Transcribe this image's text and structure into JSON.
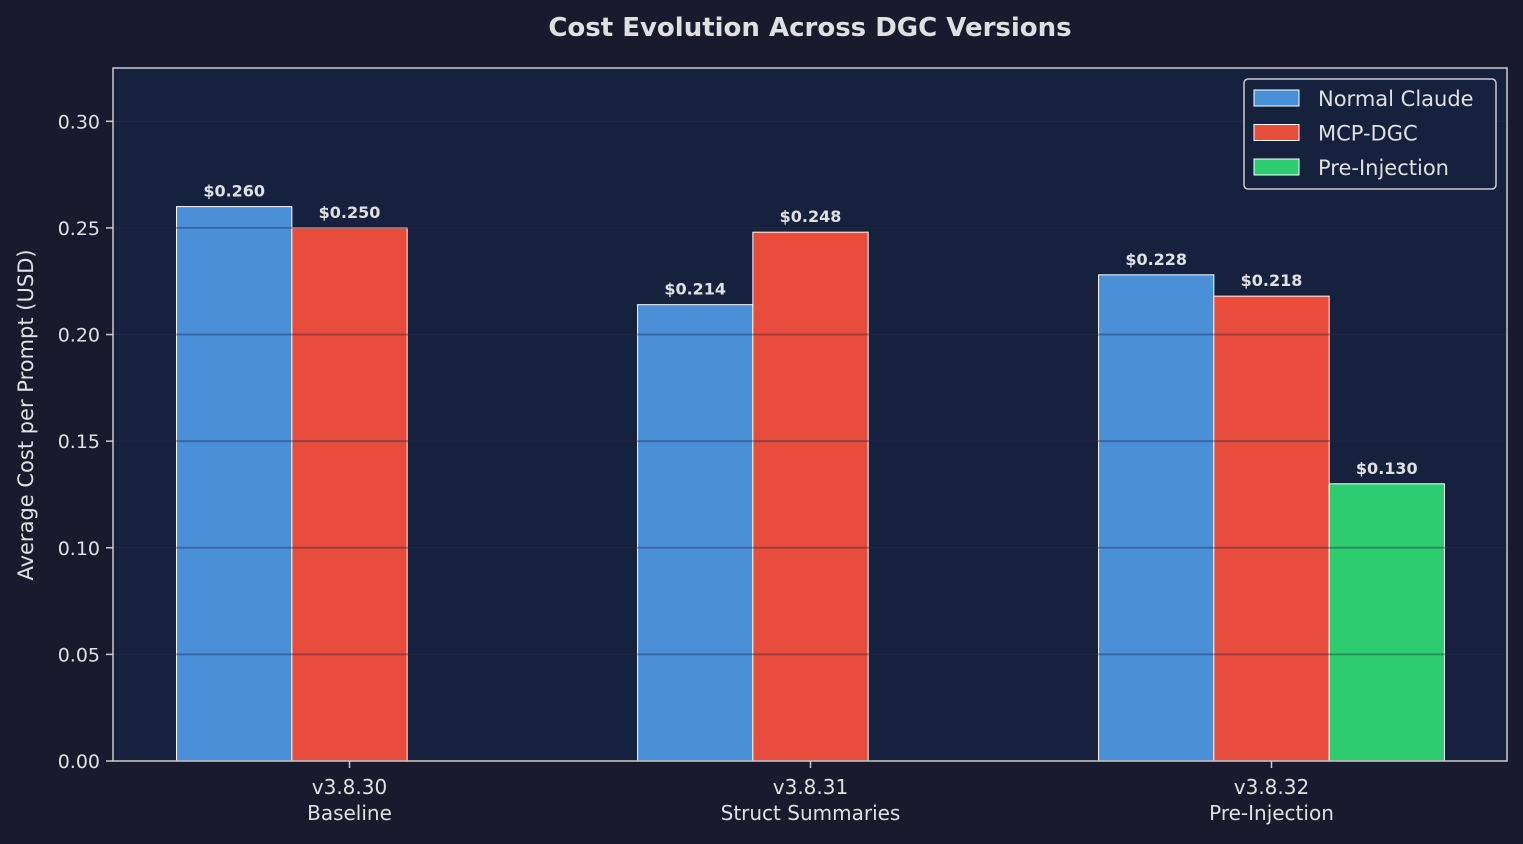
{
  "chart_data": {
    "type": "bar",
    "title": "Cost Evolution Across DGC Versions",
    "xlabel": "",
    "ylabel": "Average Cost per Prompt (USD)",
    "ylim": [
      0,
      0.325
    ],
    "yticks": [
      "0.00",
      "0.05",
      "0.10",
      "0.15",
      "0.20",
      "0.25",
      "0.30"
    ],
    "grid": true,
    "legend_position": "top-right",
    "categories": [
      [
        "v3.8.30",
        "Baseline"
      ],
      [
        "v3.8.31",
        "Struct Summaries"
      ],
      [
        "v3.8.32",
        "Pre-Injection"
      ]
    ],
    "series": [
      {
        "name": "Normal Claude",
        "color": "#4a90d9",
        "values": [
          0.26,
          0.214,
          0.228
        ],
        "labels": [
          "$0.260",
          "$0.214",
          "$0.228"
        ]
      },
      {
        "name": "MCP-DGC",
        "color": "#e74c3c",
        "values": [
          0.25,
          0.248,
          0.218
        ],
        "labels": [
          "$0.250",
          "$0.248",
          "$0.218"
        ]
      },
      {
        "name": "Pre-Injection",
        "color": "#2ecc71",
        "values": [
          null,
          null,
          0.13
        ],
        "labels": [
          null,
          null,
          "$0.130"
        ]
      }
    ],
    "colors": {
      "background": "#1a1a2e",
      "plot_background": "#16213e",
      "text": "#e0e0e0"
    }
  }
}
